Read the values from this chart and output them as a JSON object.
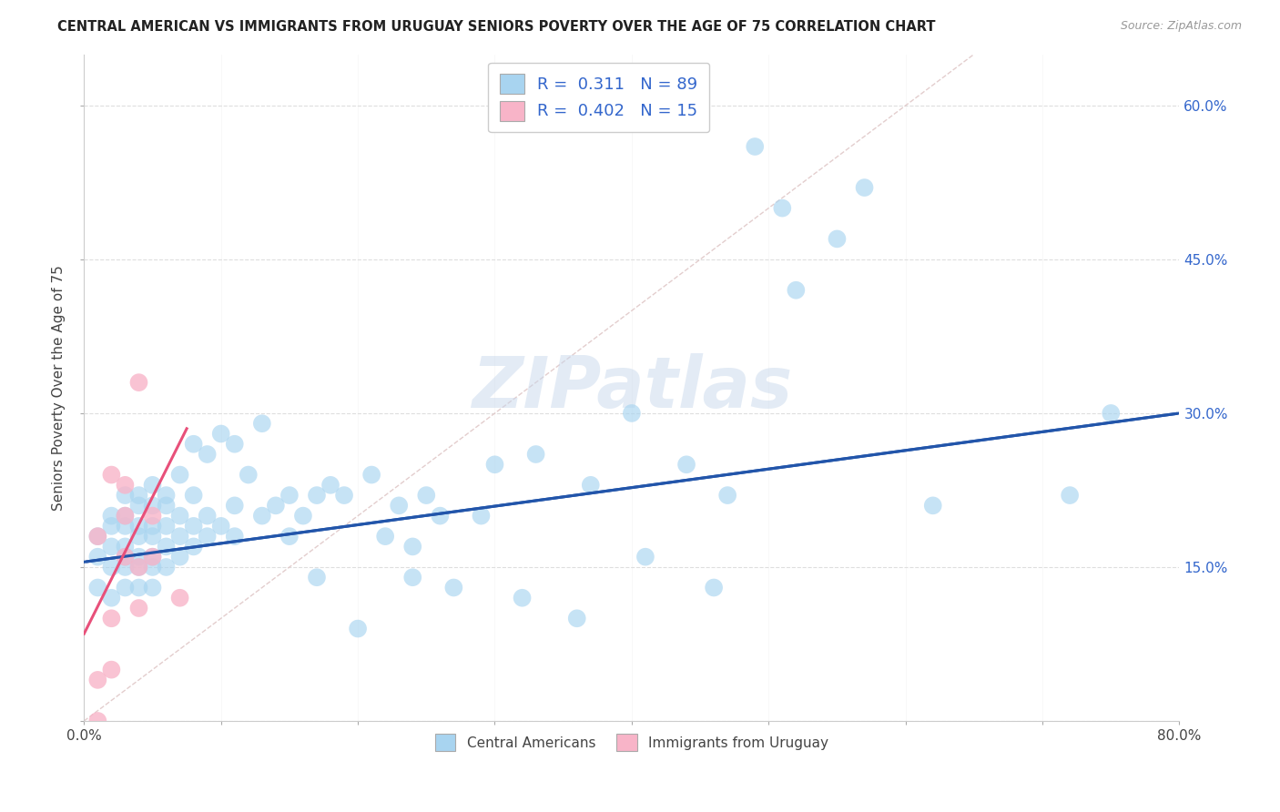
{
  "title": "CENTRAL AMERICAN VS IMMIGRANTS FROM URUGUAY SENIORS POVERTY OVER THE AGE OF 75 CORRELATION CHART",
  "source": "Source: ZipAtlas.com",
  "ylabel": "Seniors Poverty Over the Age of 75",
  "xlim": [
    0.0,
    0.8
  ],
  "ylim": [
    0.0,
    0.65
  ],
  "x_ticks": [
    0.0,
    0.1,
    0.2,
    0.3,
    0.4,
    0.5,
    0.6,
    0.7,
    0.8
  ],
  "y_ticks": [
    0.0,
    0.15,
    0.3,
    0.45,
    0.6
  ],
  "r_blue": 0.311,
  "n_blue": 89,
  "r_pink": 0.402,
  "n_pink": 15,
  "blue_color": "#A8D4F0",
  "pink_color": "#F8B4C8",
  "trend_blue_color": "#2255AA",
  "trend_pink_color": "#E8507A",
  "diagonal_color": "#E0C8C8",
  "watermark_color": "#C8D8EC",
  "background_color": "#FFFFFF",
  "grid_color": "#DEDEDE",
  "blue_scatter_x": [
    0.01,
    0.01,
    0.01,
    0.02,
    0.02,
    0.02,
    0.02,
    0.02,
    0.03,
    0.03,
    0.03,
    0.03,
    0.03,
    0.03,
    0.03,
    0.04,
    0.04,
    0.04,
    0.04,
    0.04,
    0.04,
    0.04,
    0.05,
    0.05,
    0.05,
    0.05,
    0.05,
    0.05,
    0.05,
    0.06,
    0.06,
    0.06,
    0.06,
    0.06,
    0.07,
    0.07,
    0.07,
    0.07,
    0.08,
    0.08,
    0.08,
    0.08,
    0.09,
    0.09,
    0.09,
    0.1,
    0.1,
    0.11,
    0.11,
    0.11,
    0.12,
    0.13,
    0.13,
    0.14,
    0.15,
    0.15,
    0.16,
    0.17,
    0.17,
    0.18,
    0.19,
    0.2,
    0.21,
    0.22,
    0.23,
    0.24,
    0.24,
    0.25,
    0.26,
    0.27,
    0.29,
    0.3,
    0.32,
    0.33,
    0.36,
    0.37,
    0.4,
    0.41,
    0.44,
    0.46,
    0.47,
    0.49,
    0.51,
    0.52,
    0.55,
    0.57,
    0.62,
    0.72,
    0.75
  ],
  "blue_scatter_y": [
    0.13,
    0.16,
    0.18,
    0.12,
    0.15,
    0.17,
    0.19,
    0.2,
    0.13,
    0.15,
    0.16,
    0.17,
    0.19,
    0.2,
    0.22,
    0.13,
    0.15,
    0.16,
    0.18,
    0.19,
    0.21,
    0.22,
    0.13,
    0.15,
    0.16,
    0.18,
    0.19,
    0.21,
    0.23,
    0.15,
    0.17,
    0.19,
    0.21,
    0.22,
    0.16,
    0.18,
    0.2,
    0.24,
    0.17,
    0.19,
    0.22,
    0.27,
    0.18,
    0.2,
    0.26,
    0.19,
    0.28,
    0.18,
    0.21,
    0.27,
    0.24,
    0.2,
    0.29,
    0.21,
    0.18,
    0.22,
    0.2,
    0.14,
    0.22,
    0.23,
    0.22,
    0.09,
    0.24,
    0.18,
    0.21,
    0.14,
    0.17,
    0.22,
    0.2,
    0.13,
    0.2,
    0.25,
    0.12,
    0.26,
    0.1,
    0.23,
    0.3,
    0.16,
    0.25,
    0.13,
    0.22,
    0.56,
    0.5,
    0.42,
    0.47,
    0.52,
    0.21,
    0.22,
    0.3
  ],
  "pink_scatter_x": [
    0.01,
    0.01,
    0.01,
    0.02,
    0.02,
    0.02,
    0.03,
    0.03,
    0.03,
    0.04,
    0.04,
    0.04,
    0.05,
    0.05,
    0.07
  ],
  "pink_scatter_y": [
    0.0,
    0.04,
    0.18,
    0.05,
    0.1,
    0.24,
    0.16,
    0.2,
    0.23,
    0.11,
    0.15,
    0.33,
    0.16,
    0.2,
    0.12
  ],
  "trend_blue_x0": 0.0,
  "trend_blue_y0": 0.155,
  "trend_blue_x1": 0.8,
  "trend_blue_y1": 0.3,
  "trend_pink_x0": 0.0,
  "trend_pink_y0": 0.085,
  "trend_pink_x1": 0.075,
  "trend_pink_y1": 0.285
}
